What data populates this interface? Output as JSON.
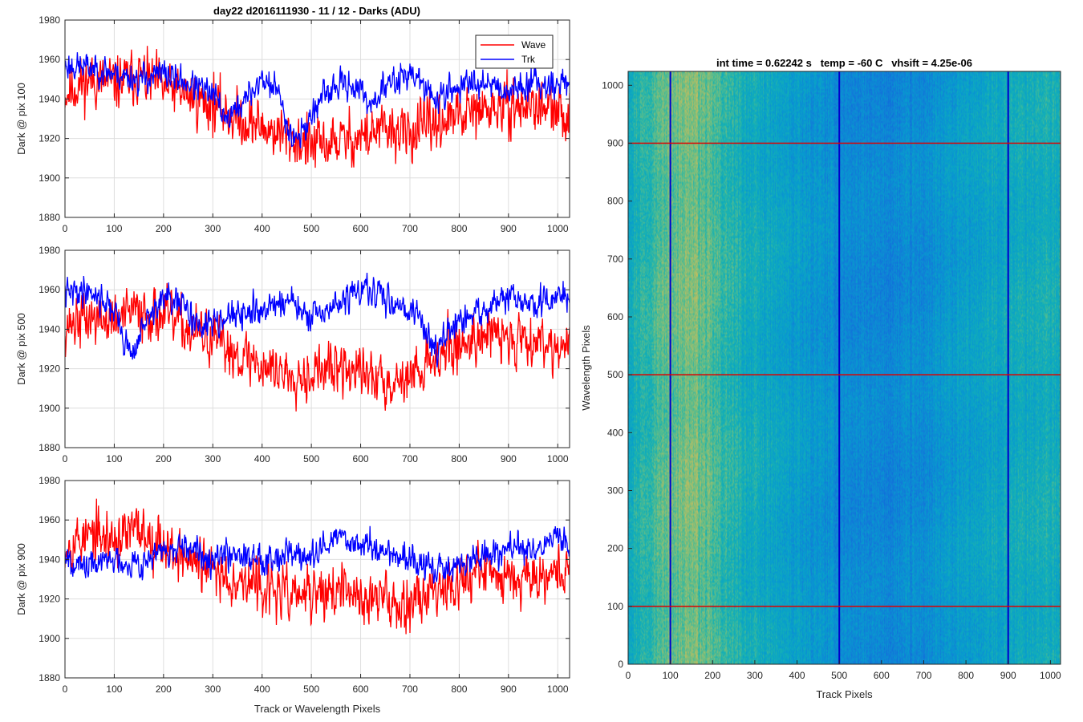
{
  "figure": {
    "title": "day22 d2016111930 - 11 / 12 - Darks (ADU)",
    "shared_xlabel": "Track or Wavelength Pixels"
  },
  "chart_data": [
    {
      "type": "line",
      "ylabel": "Dark @ pix 100",
      "xlim": [
        0,
        1024
      ],
      "ylim": [
        1880,
        1980
      ],
      "xticks": [
        0,
        100,
        200,
        300,
        400,
        500,
        600,
        700,
        800,
        900,
        1000
      ],
      "yticks": [
        1880,
        1900,
        1920,
        1940,
        1960,
        1980
      ],
      "grid": true,
      "legend": "top-right",
      "series": [
        {
          "name": "Wave",
          "color": "#ff0000",
          "trend": [
            [
              0,
              1943
            ],
            [
              50,
              1950
            ],
            [
              100,
              1948
            ],
            [
              150,
              1952
            ],
            [
              200,
              1946
            ],
            [
              250,
              1942
            ],
            [
              300,
              1937
            ],
            [
              350,
              1930
            ],
            [
              400,
              1926
            ],
            [
              450,
              1921
            ],
            [
              500,
              1916
            ],
            [
              550,
              1918
            ],
            [
              600,
              1921
            ],
            [
              650,
              1924
            ],
            [
              700,
              1922
            ],
            [
              750,
              1928
            ],
            [
              800,
              1931
            ],
            [
              850,
              1934
            ],
            [
              900,
              1936
            ],
            [
              950,
              1937
            ],
            [
              1000,
              1932
            ],
            [
              1024,
              1931
            ]
          ],
          "noise": 9,
          "seed": 11
        },
        {
          "name": "Trk",
          "color": "#0000ff",
          "trend": [
            [
              0,
              1957
            ],
            [
              50,
              1956
            ],
            [
              100,
              1953
            ],
            [
              150,
              1950
            ],
            [
              200,
              1953
            ],
            [
              250,
              1948
            ],
            [
              300,
              1942
            ],
            [
              330,
              1930
            ],
            [
              360,
              1938
            ],
            [
              400,
              1950
            ],
            [
              430,
              1945
            ],
            [
              460,
              1921
            ],
            [
              480,
              1922
            ],
            [
              500,
              1932
            ],
            [
              520,
              1940
            ],
            [
              550,
              1946
            ],
            [
              580,
              1948
            ],
            [
              620,
              1938
            ],
            [
              660,
              1948
            ],
            [
              700,
              1954
            ],
            [
              750,
              1940
            ],
            [
              800,
              1946
            ],
            [
              850,
              1950
            ],
            [
              900,
              1944
            ],
            [
              950,
              1949
            ],
            [
              1000,
              1947
            ],
            [
              1024,
              1950
            ]
          ],
          "noise": 5,
          "seed": 23
        }
      ]
    },
    {
      "type": "line",
      "ylabel": "Dark @ pix 500",
      "xlim": [
        0,
        1024
      ],
      "ylim": [
        1880,
        1980
      ],
      "xticks": [
        0,
        100,
        200,
        300,
        400,
        500,
        600,
        700,
        800,
        900,
        1000
      ],
      "yticks": [
        1880,
        1900,
        1920,
        1940,
        1960,
        1980
      ],
      "grid": true,
      "series": [
        {
          "name": "Wave",
          "color": "#ff0000",
          "trend": [
            [
              0,
              1942
            ],
            [
              50,
              1946
            ],
            [
              100,
              1944
            ],
            [
              150,
              1950
            ],
            [
              200,
              1947
            ],
            [
              250,
              1940
            ],
            [
              300,
              1934
            ],
            [
              350,
              1928
            ],
            [
              400,
              1922
            ],
            [
              450,
              1918
            ],
            [
              500,
              1918
            ],
            [
              550,
              1920
            ],
            [
              600,
              1918
            ],
            [
              650,
              1914
            ],
            [
              700,
              1916
            ],
            [
              750,
              1926
            ],
            [
              800,
              1932
            ],
            [
              850,
              1938
            ],
            [
              900,
              1935
            ],
            [
              950,
              1936
            ],
            [
              1000,
              1932
            ],
            [
              1024,
              1930
            ]
          ],
          "noise": 9,
          "seed": 37
        },
        {
          "name": "Trk",
          "color": "#0000ff",
          "trend": [
            [
              0,
              1958
            ],
            [
              50,
              1960
            ],
            [
              100,
              1950
            ],
            [
              120,
              1934
            ],
            [
              140,
              1928
            ],
            [
              160,
              1942
            ],
            [
              200,
              1956
            ],
            [
              250,
              1950
            ],
            [
              280,
              1938
            ],
            [
              300,
              1946
            ],
            [
              350,
              1946
            ],
            [
              400,
              1950
            ],
            [
              450,
              1955
            ],
            [
              500,
              1945
            ],
            [
              550,
              1952
            ],
            [
              600,
              1960
            ],
            [
              650,
              1956
            ],
            [
              700,
              1950
            ],
            [
              720,
              1946
            ],
            [
              750,
              1930
            ],
            [
              800,
              1943
            ],
            [
              850,
              1950
            ],
            [
              900,
              1956
            ],
            [
              950,
              1952
            ],
            [
              1000,
              1956
            ],
            [
              1024,
              1956
            ]
          ],
          "noise": 5,
          "seed": 41
        }
      ]
    },
    {
      "type": "line",
      "ylabel": "Dark @ pix 900",
      "xlim": [
        0,
        1024
      ],
      "ylim": [
        1880,
        1980
      ],
      "xticks": [
        0,
        100,
        200,
        300,
        400,
        500,
        600,
        700,
        800,
        900,
        1000
      ],
      "yticks": [
        1880,
        1900,
        1920,
        1940,
        1960,
        1980
      ],
      "grid": true,
      "xlabel": "Track or Wavelength Pixels",
      "series": [
        {
          "name": "Wave",
          "color": "#ff0000",
          "trend": [
            [
              0,
              1948
            ],
            [
              50,
              1952
            ],
            [
              100,
              1950
            ],
            [
              150,
              1955
            ],
            [
              200,
              1948
            ],
            [
              250,
              1940
            ],
            [
              300,
              1934
            ],
            [
              350,
              1930
            ],
            [
              400,
              1926
            ],
            [
              450,
              1922
            ],
            [
              500,
              1922
            ],
            [
              550,
              1924
            ],
            [
              600,
              1921
            ],
            [
              650,
              1920
            ],
            [
              700,
              1918
            ],
            [
              750,
              1926
            ],
            [
              800,
              1930
            ],
            [
              850,
              1934
            ],
            [
              900,
              1932
            ],
            [
              950,
              1933
            ],
            [
              1000,
              1934
            ],
            [
              1024,
              1935
            ]
          ],
          "noise": 9,
          "seed": 53
        },
        {
          "name": "Trk",
          "color": "#0000ff",
          "trend": [
            [
              0,
              1945
            ],
            [
              30,
              1935
            ],
            [
              60,
              1938
            ],
            [
              100,
              1940
            ],
            [
              150,
              1938
            ],
            [
              200,
              1944
            ],
            [
              250,
              1944
            ],
            [
              300,
              1942
            ],
            [
              350,
              1944
            ],
            [
              400,
              1940
            ],
            [
              450,
              1944
            ],
            [
              500,
              1940
            ],
            [
              550,
              1952
            ],
            [
              600,
              1948
            ],
            [
              650,
              1944
            ],
            [
              700,
              1940
            ],
            [
              750,
              1934
            ],
            [
              800,
              1937
            ],
            [
              850,
              1942
            ],
            [
              900,
              1946
            ],
            [
              950,
              1944
            ],
            [
              1000,
              1952
            ],
            [
              1024,
              1946
            ]
          ],
          "noise": 5,
          "seed": 67
        }
      ]
    },
    {
      "type": "heatmap",
      "title": "int time = 0.62242 s   temp = -60 C   vhsift = 4.25e-06",
      "xlabel": "Track Pixels",
      "ylabel": "Wavelength Pixels",
      "xlim": [
        0,
        1024
      ],
      "ylim": [
        0,
        1024
      ],
      "xticks": [
        0,
        100,
        200,
        300,
        400,
        500,
        600,
        700,
        800,
        900,
        1000
      ],
      "yticks": [
        0,
        100,
        200,
        300,
        400,
        500,
        600,
        700,
        800,
        900,
        1000
      ],
      "colormap": "parula",
      "column_profile": [
        [
          0,
          0.52
        ],
        [
          60,
          0.62
        ],
        [
          120,
          0.68
        ],
        [
          150,
          0.7
        ],
        [
          200,
          0.62
        ],
        [
          250,
          0.55
        ],
        [
          300,
          0.5
        ],
        [
          400,
          0.43
        ],
        [
          500,
          0.36
        ],
        [
          600,
          0.33
        ],
        [
          700,
          0.36
        ],
        [
          800,
          0.44
        ],
        [
          900,
          0.5
        ],
        [
          1000,
          0.52
        ],
        [
          1024,
          0.53
        ]
      ],
      "vertical_lines": {
        "color": "#0000cc",
        "x": [
          100,
          500,
          900
        ]
      },
      "horizontal_lines": {
        "color": "#dd0000",
        "y": [
          100,
          500,
          900
        ]
      }
    }
  ]
}
